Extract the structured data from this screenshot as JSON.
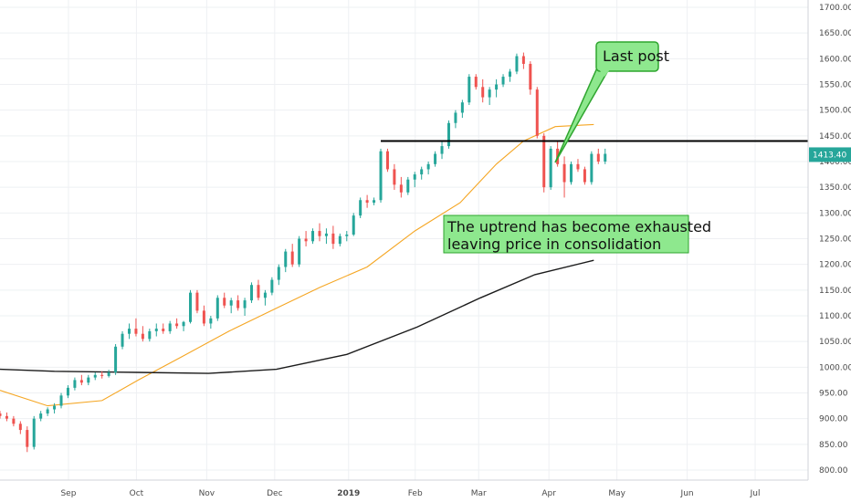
{
  "chart_data": {
    "type": "candlestick",
    "x_ticks": [
      "Sep",
      "Oct",
      "Nov",
      "Dec",
      "2019",
      "Feb",
      "Mar",
      "Apr",
      "May",
      "Jun",
      "Jul"
    ],
    "y_ticks": [
      "1700.00",
      "1650.00",
      "1600.00",
      "1550.00",
      "1500.00",
      "1450.00",
      "1400.00",
      "1350.00",
      "1300.00",
      "1250.00",
      "1200.00",
      "1150.00",
      "1100.00",
      "1050.00",
      "1000.00",
      "950.00",
      "900.00",
      "850.00",
      "800.00"
    ],
    "ylim": [
      790,
      1710
    ],
    "grid": true,
    "last_price": "1413.40",
    "resistance_level": 1440,
    "date_range": [
      "2018-08-01",
      "2019-07-31"
    ],
    "moving_averages": [
      {
        "color": "#f5a623",
        "points": [
          [
            "2018-08-01",
            955
          ],
          [
            "2018-08-22",
            925
          ],
          [
            "2018-09-15",
            935
          ],
          [
            "2018-10-01",
            975
          ],
          [
            "2018-10-20",
            1020
          ],
          [
            "2018-11-10",
            1070
          ],
          [
            "2018-12-01",
            1115
          ],
          [
            "2018-12-20",
            1155
          ],
          [
            "2019-01-10",
            1195
          ],
          [
            "2019-01-31",
            1265
          ],
          [
            "2019-02-20",
            1320
          ],
          [
            "2019-03-08",
            1395
          ],
          [
            "2019-03-20",
            1440
          ],
          [
            "2019-04-03",
            1468
          ],
          [
            "2019-04-20",
            1472
          ]
        ]
      },
      {
        "color": "#1b1b1b",
        "points": [
          [
            "2018-08-01",
            996
          ],
          [
            "2018-08-25",
            992
          ],
          [
            "2018-10-01",
            990
          ],
          [
            "2018-11-01",
            988
          ],
          [
            "2018-12-01",
            996
          ],
          [
            "2019-01-01",
            1025
          ],
          [
            "2019-02-01",
            1078
          ],
          [
            "2019-03-01",
            1135
          ],
          [
            "2019-03-25",
            1180
          ],
          [
            "2019-04-20",
            1208
          ]
        ]
      }
    ],
    "candles": [
      [
        "2018-08-01",
        910,
        915,
        900,
        905
      ],
      [
        "2018-08-04",
        905,
        912,
        895,
        900
      ],
      [
        "2018-08-07",
        900,
        905,
        885,
        890
      ],
      [
        "2018-08-10",
        890,
        895,
        870,
        878
      ],
      [
        "2018-08-13",
        878,
        885,
        835,
        845
      ],
      [
        "2018-08-16",
        845,
        905,
        840,
        900
      ],
      [
        "2018-08-19",
        900,
        915,
        895,
        910
      ],
      [
        "2018-08-22",
        910,
        922,
        905,
        918
      ],
      [
        "2018-08-25",
        918,
        930,
        910,
        925
      ],
      [
        "2018-08-28",
        925,
        950,
        920,
        945
      ],
      [
        "2018-08-31",
        945,
        965,
        940,
        960
      ],
      [
        "2018-09-03",
        960,
        980,
        955,
        975
      ],
      [
        "2018-09-06",
        975,
        985,
        965,
        970
      ],
      [
        "2018-09-09",
        970,
        985,
        965,
        980
      ],
      [
        "2018-09-12",
        980,
        990,
        975,
        985
      ],
      [
        "2018-09-15",
        985,
        992,
        978,
        983
      ],
      [
        "2018-09-18",
        983,
        995,
        980,
        990
      ],
      [
        "2018-09-21",
        990,
        1045,
        985,
        1040
      ],
      [
        "2018-09-24",
        1040,
        1070,
        1035,
        1065
      ],
      [
        "2018-09-27",
        1065,
        1085,
        1055,
        1075
      ],
      [
        "2018-09-30",
        1075,
        1095,
        1060,
        1065
      ],
      [
        "2018-10-03",
        1065,
        1080,
        1050,
        1055
      ],
      [
        "2018-10-06",
        1055,
        1075,
        1050,
        1070
      ],
      [
        "2018-10-09",
        1070,
        1085,
        1060,
        1075
      ],
      [
        "2018-10-12",
        1075,
        1085,
        1065,
        1070
      ],
      [
        "2018-10-15",
        1070,
        1090,
        1065,
        1085
      ],
      [
        "2018-10-18",
        1085,
        1095,
        1075,
        1080
      ],
      [
        "2018-10-21",
        1080,
        1090,
        1070,
        1088
      ],
      [
        "2018-10-24",
        1088,
        1150,
        1085,
        1145
      ],
      [
        "2018-10-27",
        1145,
        1150,
        1105,
        1110
      ],
      [
        "2018-10-30",
        1110,
        1120,
        1080,
        1085
      ],
      [
        "2018-11-02",
        1085,
        1100,
        1075,
        1095
      ],
      [
        "2018-11-05",
        1095,
        1140,
        1090,
        1135
      ],
      [
        "2018-11-08",
        1135,
        1145,
        1115,
        1120
      ],
      [
        "2018-11-11",
        1120,
        1135,
        1105,
        1130
      ],
      [
        "2018-11-14",
        1130,
        1140,
        1110,
        1115
      ],
      [
        "2018-11-17",
        1115,
        1135,
        1100,
        1130
      ],
      [
        "2018-11-20",
        1130,
        1165,
        1125,
        1160
      ],
      [
        "2018-11-23",
        1160,
        1170,
        1130,
        1135
      ],
      [
        "2018-11-26",
        1135,
        1150,
        1120,
        1145
      ],
      [
        "2018-11-29",
        1145,
        1175,
        1140,
        1170
      ],
      [
        "2018-12-02",
        1170,
        1200,
        1160,
        1195
      ],
      [
        "2018-12-05",
        1195,
        1230,
        1185,
        1225
      ],
      [
        "2018-12-08",
        1225,
        1240,
        1195,
        1200
      ],
      [
        "2018-12-11",
        1200,
        1255,
        1195,
        1250
      ],
      [
        "2018-12-14",
        1250,
        1265,
        1235,
        1245
      ],
      [
        "2018-12-17",
        1245,
        1270,
        1240,
        1265
      ],
      [
        "2018-12-20",
        1265,
        1280,
        1245,
        1255
      ],
      [
        "2018-12-23",
        1255,
        1270,
        1240,
        1260
      ],
      [
        "2018-12-26",
        1260,
        1275,
        1230,
        1240
      ],
      [
        "2018-12-29",
        1240,
        1260,
        1235,
        1255
      ],
      [
        "2019-01-01",
        1255,
        1265,
        1245,
        1258
      ],
      [
        "2019-01-04",
        1258,
        1300,
        1255,
        1295
      ],
      [
        "2019-01-07",
        1295,
        1330,
        1290,
        1325
      ],
      [
        "2019-01-10",
        1325,
        1335,
        1310,
        1320
      ],
      [
        "2019-01-13",
        1320,
        1330,
        1315,
        1325
      ],
      [
        "2019-01-16",
        1325,
        1425,
        1320,
        1420
      ],
      [
        "2019-01-19",
        1420,
        1425,
        1380,
        1385
      ],
      [
        "2019-01-22",
        1385,
        1395,
        1345,
        1355
      ],
      [
        "2019-01-25",
        1355,
        1370,
        1330,
        1340
      ],
      [
        "2019-01-28",
        1340,
        1370,
        1335,
        1365
      ],
      [
        "2019-01-31",
        1365,
        1380,
        1350,
        1375
      ],
      [
        "2019-02-03",
        1375,
        1390,
        1365,
        1385
      ],
      [
        "2019-02-06",
        1385,
        1400,
        1375,
        1395
      ],
      [
        "2019-02-09",
        1395,
        1420,
        1390,
        1415
      ],
      [
        "2019-02-12",
        1415,
        1440,
        1405,
        1430
      ],
      [
        "2019-02-15",
        1430,
        1480,
        1425,
        1475
      ],
      [
        "2019-02-18",
        1475,
        1500,
        1465,
        1495
      ],
      [
        "2019-02-21",
        1495,
        1520,
        1485,
        1515
      ],
      [
        "2019-02-24",
        1515,
        1570,
        1510,
        1565
      ],
      [
        "2019-02-27",
        1565,
        1570,
        1540,
        1545
      ],
      [
        "2019-03-02",
        1545,
        1560,
        1515,
        1525
      ],
      [
        "2019-03-05",
        1525,
        1545,
        1510,
        1540
      ],
      [
        "2019-03-08",
        1540,
        1560,
        1525,
        1550
      ],
      [
        "2019-03-11",
        1550,
        1570,
        1545,
        1565
      ],
      [
        "2019-03-14",
        1565,
        1580,
        1555,
        1575
      ],
      [
        "2019-03-17",
        1575,
        1610,
        1570,
        1605
      ],
      [
        "2019-03-20",
        1605,
        1612,
        1580,
        1590
      ],
      [
        "2019-03-23",
        1590,
        1595,
        1530,
        1540
      ],
      [
        "2019-03-26",
        1540,
        1545,
        1445,
        1450
      ],
      [
        "2019-03-29",
        1450,
        1455,
        1340,
        1350
      ],
      [
        "2019-04-01",
        1350,
        1430,
        1345,
        1425
      ],
      [
        "2019-04-04",
        1425,
        1440,
        1390,
        1395
      ],
      [
        "2019-04-07",
        1395,
        1410,
        1330,
        1360
      ],
      [
        "2019-04-10",
        1360,
        1400,
        1355,
        1395
      ],
      [
        "2019-04-13",
        1395,
        1405,
        1380,
        1385
      ],
      [
        "2019-04-16",
        1385,
        1390,
        1355,
        1360
      ],
      [
        "2019-04-19",
        1360,
        1420,
        1355,
        1415
      ],
      [
        "2019-04-22",
        1415,
        1425,
        1395,
        1400
      ],
      [
        "2019-04-25",
        1400,
        1425,
        1395,
        1415
      ]
    ]
  },
  "annotations": {
    "last_post": {
      "text": "Last post"
    },
    "consolidation": {
      "lines": [
        "The uptrend has become exhausted",
        "leaving price in consolidation"
      ]
    }
  },
  "colors": {
    "up": "#26a69a",
    "down": "#ef5350",
    "resistance": "#000000",
    "callout_fill": "#8ee88e",
    "callout_stroke": "#2fa52f",
    "price_tag": "#26a69a"
  }
}
